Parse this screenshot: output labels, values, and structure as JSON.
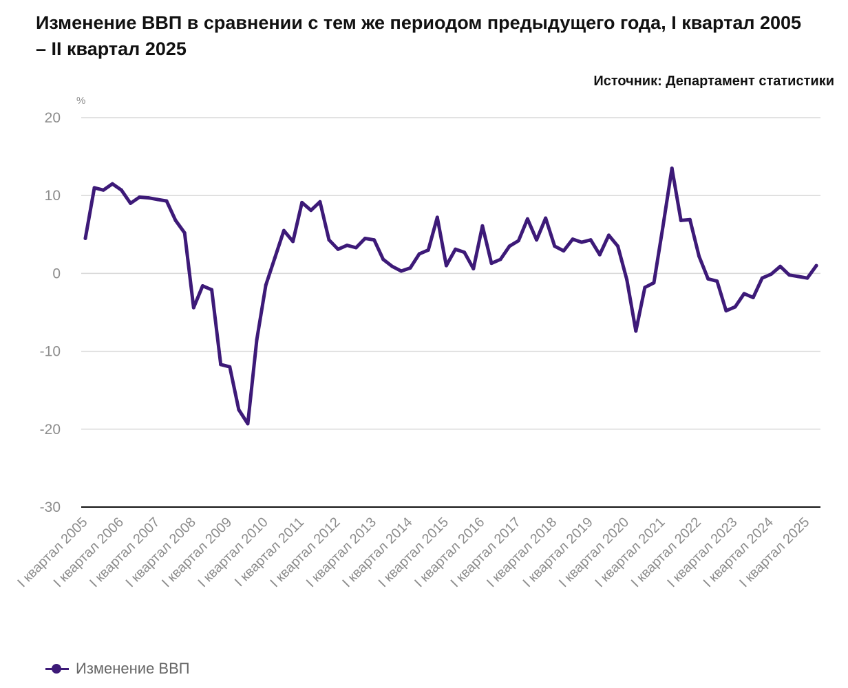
{
  "title": "Изменение ВВП в сравнении с тем же периодом предыдущего года, I квартал 2005 – II квартал 2025",
  "source": "Источник: Департамент статистики",
  "colors": {
    "series": "#3d1a78",
    "grid": "#d9d9d9",
    "axis": "#111111",
    "tick_text": "#8c8c8c"
  },
  "chart_data": {
    "type": "line",
    "ylabel": "%",
    "ylim": [
      -30,
      20
    ],
    "yticks": [
      20,
      10,
      0,
      -10,
      -20,
      -30
    ],
    "grid": true,
    "legend_position": "bottom-left",
    "x_tick_labels": [
      "I квартал 2005",
      "I квартал 2006",
      "I квартал 2007",
      "I квартал 2008",
      "I квартал 2009",
      "I квартал 2010",
      "I квартал 2011",
      "I квартал 2012",
      "I квартал 2013",
      "I квартал 2014",
      "I квартал 2015",
      "I квартал 2016",
      "I квартал 2017",
      "I квартал 2018",
      "I квартал 2019",
      "I квартал 2020",
      "I квартал 2021",
      "I квартал 2022",
      "I квартал 2023",
      "I квартал 2024",
      "I квартал 2025"
    ],
    "series": [
      {
        "name": "Изменение ВВП",
        "values": [
          4.5,
          11.0,
          10.7,
          11.5,
          10.7,
          9.0,
          9.8,
          9.7,
          9.5,
          9.3,
          6.8,
          5.2,
          -4.4,
          -1.6,
          -2.1,
          -11.7,
          -12.0,
          -17.5,
          -19.3,
          -8.5,
          -1.5,
          2.0,
          5.5,
          4.1,
          9.1,
          8.1,
          9.2,
          4.3,
          3.1,
          3.6,
          3.3,
          4.5,
          4.3,
          1.8,
          0.9,
          0.3,
          0.7,
          2.5,
          3.0,
          7.2,
          1.0,
          3.1,
          2.7,
          0.6,
          6.1,
          1.3,
          1.8,
          3.5,
          4.2,
          7.0,
          4.3,
          7.1,
          3.5,
          2.9,
          4.4,
          4.0,
          4.3,
          2.4,
          4.9,
          3.5,
          -0.8,
          -7.4,
          -1.8,
          -1.2,
          6.0,
          13.5,
          6.8,
          6.9,
          2.2,
          -0.7,
          -1.0,
          -4.8,
          -4.3,
          -2.6,
          -3.1,
          -0.6,
          -0.1,
          0.9,
          -0.2,
          -0.4,
          -0.6,
          1.0
        ]
      }
    ]
  }
}
